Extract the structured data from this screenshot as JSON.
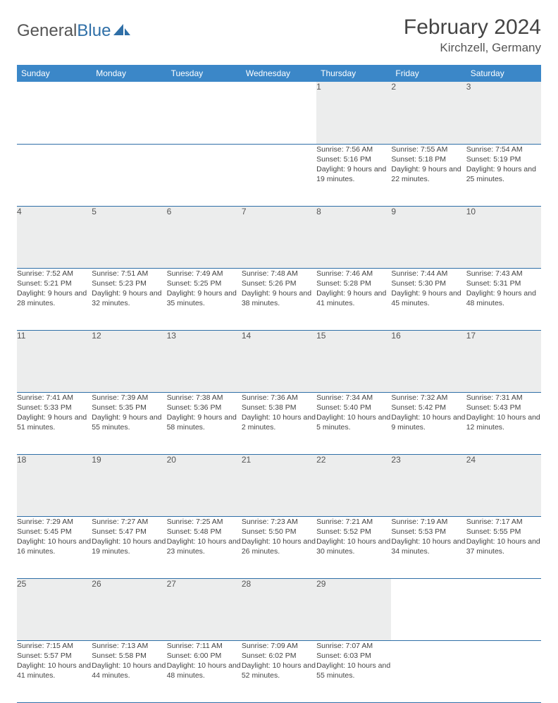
{
  "brand": {
    "part1": "General",
    "part2": "Blue"
  },
  "title": "February 2024",
  "location": "Kirchzell, Germany",
  "colors": {
    "header_bg": "#3b87c8",
    "header_text": "#ffffff",
    "daynum_bg": "#eceded",
    "rule": "#2f6fa7",
    "logo_accent": "#2f6fa7",
    "text": "#444444"
  },
  "day_headers": [
    "Sunday",
    "Monday",
    "Tuesday",
    "Wednesday",
    "Thursday",
    "Friday",
    "Saturday"
  ],
  "weeks": [
    [
      null,
      null,
      null,
      null,
      {
        "n": "1",
        "sr": "7:56 AM",
        "ss": "5:16 PM",
        "dl": "9 hours and 19 minutes."
      },
      {
        "n": "2",
        "sr": "7:55 AM",
        "ss": "5:18 PM",
        "dl": "9 hours and 22 minutes."
      },
      {
        "n": "3",
        "sr": "7:54 AM",
        "ss": "5:19 PM",
        "dl": "9 hours and 25 minutes."
      }
    ],
    [
      {
        "n": "4",
        "sr": "7:52 AM",
        "ss": "5:21 PM",
        "dl": "9 hours and 28 minutes."
      },
      {
        "n": "5",
        "sr": "7:51 AM",
        "ss": "5:23 PM",
        "dl": "9 hours and 32 minutes."
      },
      {
        "n": "6",
        "sr": "7:49 AM",
        "ss": "5:25 PM",
        "dl": "9 hours and 35 minutes."
      },
      {
        "n": "7",
        "sr": "7:48 AM",
        "ss": "5:26 PM",
        "dl": "9 hours and 38 minutes."
      },
      {
        "n": "8",
        "sr": "7:46 AM",
        "ss": "5:28 PM",
        "dl": "9 hours and 41 minutes."
      },
      {
        "n": "9",
        "sr": "7:44 AM",
        "ss": "5:30 PM",
        "dl": "9 hours and 45 minutes."
      },
      {
        "n": "10",
        "sr": "7:43 AM",
        "ss": "5:31 PM",
        "dl": "9 hours and 48 minutes."
      }
    ],
    [
      {
        "n": "11",
        "sr": "7:41 AM",
        "ss": "5:33 PM",
        "dl": "9 hours and 51 minutes."
      },
      {
        "n": "12",
        "sr": "7:39 AM",
        "ss": "5:35 PM",
        "dl": "9 hours and 55 minutes."
      },
      {
        "n": "13",
        "sr": "7:38 AM",
        "ss": "5:36 PM",
        "dl": "9 hours and 58 minutes."
      },
      {
        "n": "14",
        "sr": "7:36 AM",
        "ss": "5:38 PM",
        "dl": "10 hours and 2 minutes."
      },
      {
        "n": "15",
        "sr": "7:34 AM",
        "ss": "5:40 PM",
        "dl": "10 hours and 5 minutes."
      },
      {
        "n": "16",
        "sr": "7:32 AM",
        "ss": "5:42 PM",
        "dl": "10 hours and 9 minutes."
      },
      {
        "n": "17",
        "sr": "7:31 AM",
        "ss": "5:43 PM",
        "dl": "10 hours and 12 minutes."
      }
    ],
    [
      {
        "n": "18",
        "sr": "7:29 AM",
        "ss": "5:45 PM",
        "dl": "10 hours and 16 minutes."
      },
      {
        "n": "19",
        "sr": "7:27 AM",
        "ss": "5:47 PM",
        "dl": "10 hours and 19 minutes."
      },
      {
        "n": "20",
        "sr": "7:25 AM",
        "ss": "5:48 PM",
        "dl": "10 hours and 23 minutes."
      },
      {
        "n": "21",
        "sr": "7:23 AM",
        "ss": "5:50 PM",
        "dl": "10 hours and 26 minutes."
      },
      {
        "n": "22",
        "sr": "7:21 AM",
        "ss": "5:52 PM",
        "dl": "10 hours and 30 minutes."
      },
      {
        "n": "23",
        "sr": "7:19 AM",
        "ss": "5:53 PM",
        "dl": "10 hours and 34 minutes."
      },
      {
        "n": "24",
        "sr": "7:17 AM",
        "ss": "5:55 PM",
        "dl": "10 hours and 37 minutes."
      }
    ],
    [
      {
        "n": "25",
        "sr": "7:15 AM",
        "ss": "5:57 PM",
        "dl": "10 hours and 41 minutes."
      },
      {
        "n": "26",
        "sr": "7:13 AM",
        "ss": "5:58 PM",
        "dl": "10 hours and 44 minutes."
      },
      {
        "n": "27",
        "sr": "7:11 AM",
        "ss": "6:00 PM",
        "dl": "10 hours and 48 minutes."
      },
      {
        "n": "28",
        "sr": "7:09 AM",
        "ss": "6:02 PM",
        "dl": "10 hours and 52 minutes."
      },
      {
        "n": "29",
        "sr": "7:07 AM",
        "ss": "6:03 PM",
        "dl": "10 hours and 55 minutes."
      },
      null,
      null
    ]
  ],
  "labels": {
    "sunrise": "Sunrise:",
    "sunset": "Sunset:",
    "daylight": "Daylight:"
  }
}
